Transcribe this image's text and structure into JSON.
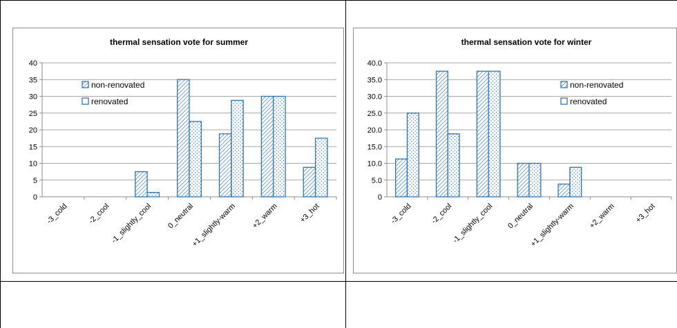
{
  "chart_data": [
    {
      "type": "bar",
      "title": "thermal sensation vote for summer",
      "categories": [
        "-3_cold",
        "-2_cool",
        "-1_slightly_cool",
        "0_neutral",
        "+1_slightly-warm",
        "+2_warm",
        "+3_hot"
      ],
      "series": [
        {
          "name": "non-renovated",
          "values": [
            0,
            0,
            7.5,
            35,
            18.8,
            30,
            8.8
          ]
        },
        {
          "name": "renovated",
          "values": [
            0,
            0,
            1.3,
            22.5,
            28.8,
            30,
            17.5
          ]
        }
      ],
      "ylim": [
        0,
        40
      ],
      "yticks": [
        "0",
        "5",
        "10",
        "15",
        "20",
        "25",
        "30",
        "35",
        "40"
      ],
      "grid": true,
      "legend": "top-left"
    },
    {
      "type": "bar",
      "title": "thermal sensation vote for winter",
      "categories": [
        "-3_cold",
        "-2_cool",
        "-1_slightly_cool",
        "0_neutral",
        "+1_slightly-warm",
        "+2_warm",
        "+3_hot"
      ],
      "series": [
        {
          "name": "non-renovated",
          "values": [
            11.3,
            37.5,
            37.5,
            10,
            3.8,
            0,
            0
          ]
        },
        {
          "name": "renovated",
          "values": [
            25,
            18.8,
            37.5,
            10,
            8.8,
            0,
            0
          ]
        }
      ],
      "ylim": [
        0,
        40
      ],
      "yticks": [
        "0",
        "5.0",
        "10.0",
        "15.0",
        "20.0",
        "25.0",
        "30.0",
        "35.0",
        "40.0"
      ],
      "grid": true,
      "legend": "top-right"
    }
  ],
  "colors": {
    "bar_stroke": "#2E75B6",
    "gridline": "#8c8c8c"
  }
}
